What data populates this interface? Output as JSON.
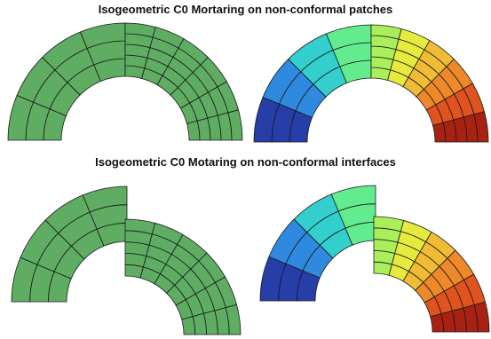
{
  "titles": {
    "top": "Isogeometric C0 Mortaring on non-conformal patches",
    "bottom": "Isogeometric C0 Motaring on non-conformal interfaces"
  },
  "colors": {
    "mesh_fill": "#5fad63",
    "mesh_line": "#1a1a1a",
    "colormap": [
      "#1e1a78",
      "#2f5fd6",
      "#2fb5e8",
      "#36e8b0",
      "#8ef06b",
      "#e6ea3e",
      "#f5a531",
      "#e0521e",
      "#8e0a0a"
    ]
  },
  "panels": [
    {
      "name": "patches-mesh",
      "kind": "mesh"
    },
    {
      "name": "patches-solution",
      "kind": "colormap"
    },
    {
      "name": "interfaces-mesh",
      "kind": "mesh"
    },
    {
      "name": "interfaces-solution",
      "kind": "colormap"
    }
  ]
}
